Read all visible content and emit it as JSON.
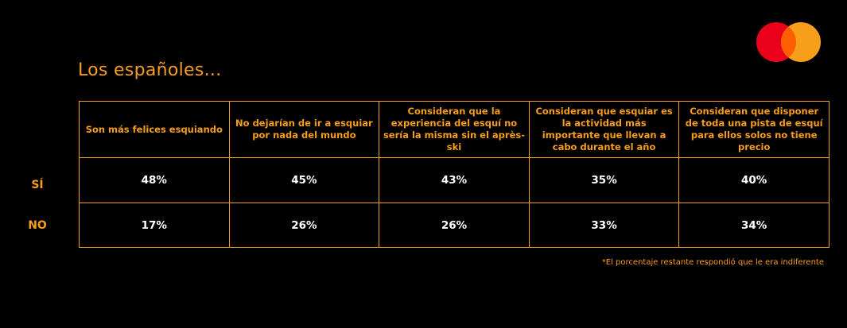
{
  "title": "Los españoles...",
  "brand_colors": {
    "accent": "#f79e1b",
    "logo_red": "#eb001b",
    "logo_yellow": "#f79e1b",
    "overlap": "#ff5f00"
  },
  "chart_data": {
    "type": "table",
    "columns": [
      "Son más felices esquiando",
      "No dejarían de ir a esquiar por nada del mundo",
      "Consideran que la experiencia del esquí no sería la misma sin el après-ski",
      "Consideran que esquiar es la actividad más importante que llevan a cabo durante el año",
      "Consideran que disponer de toda una pista de esquí para ellos solos no tiene precio"
    ],
    "rows": [
      {
        "label": "SÍ",
        "values": [
          "48%",
          "45%",
          "43%",
          "35%",
          "40%"
        ]
      },
      {
        "label": "NO",
        "values": [
          "17%",
          "26%",
          "26%",
          "33%",
          "34%"
        ]
      }
    ]
  },
  "footnote": "*El porcentaje restante respondió que le era indiferente"
}
